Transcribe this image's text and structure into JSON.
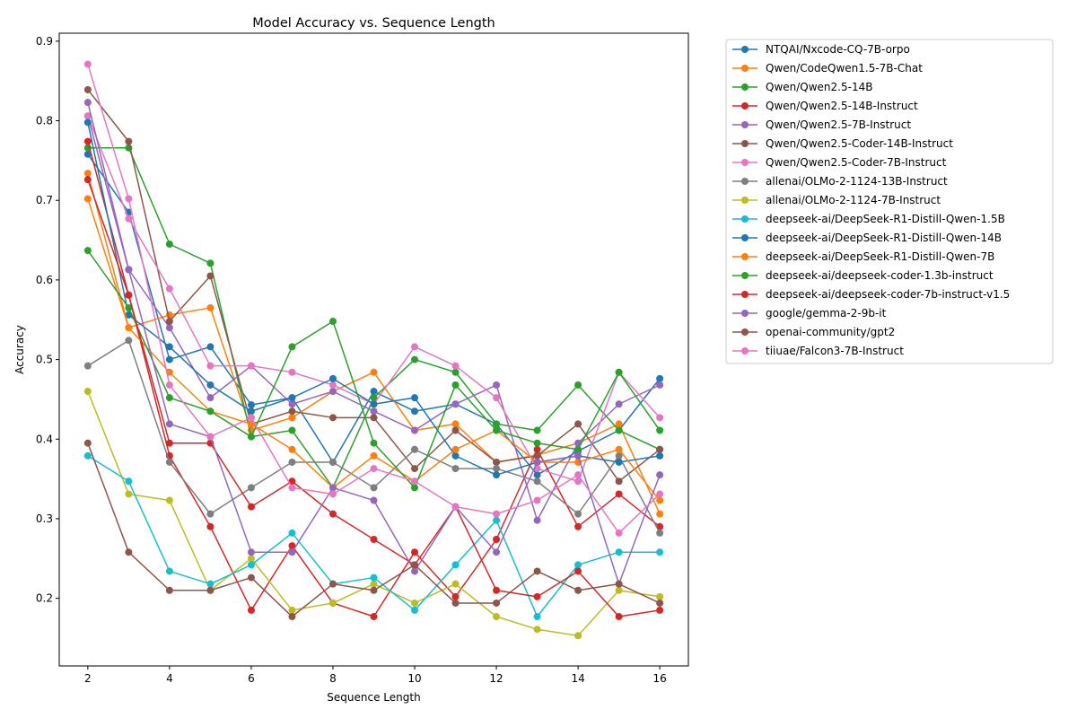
{
  "chart_data": {
    "type": "line",
    "title": "Model Accuracy vs. Sequence Length",
    "xlabel": "Sequence Length",
    "ylabel": "Accuracy",
    "x": [
      2,
      3,
      4,
      5,
      6,
      7,
      8,
      9,
      10,
      11,
      12,
      13,
      14,
      15,
      16
    ],
    "xticks": [
      2,
      4,
      6,
      8,
      10,
      12,
      14,
      16
    ],
    "yticks": [
      0.2,
      0.3,
      0.4,
      0.5,
      0.6,
      0.7,
      0.8,
      0.9
    ],
    "xlim": [
      1.3,
      16.7
    ],
    "ylim": [
      0.115,
      0.91
    ],
    "grid": false,
    "legend_placement": "outside upper right",
    "series": [
      {
        "name": "NTQAI/Nxcode-CQ-7B-orpo",
        "color": "#1f77b4",
        "values": [
          0.758,
          0.685,
          0.5,
          0.516,
          0.443,
          0.452,
          0.371,
          0.46,
          0.435,
          0.444,
          0.419,
          0.355,
          0.385,
          0.411,
          0.476
        ]
      },
      {
        "name": "Qwen/CodeQwen1.5-7B-Chat",
        "color": "#ff7f0e",
        "values": [
          0.702,
          0.54,
          0.556,
          0.565,
          0.411,
          0.427,
          0.46,
          0.484,
          0.411,
          0.419,
          0.371,
          0.38,
          0.395,
          0.419,
          0.306
        ]
      },
      {
        "name": "Qwen/Qwen2.5-14B",
        "color": "#2ca02c",
        "values": [
          0.766,
          0.766,
          0.645,
          0.621,
          0.403,
          0.411,
          0.339,
          0.452,
          0.5,
          0.484,
          0.419,
          0.411,
          0.468,
          0.411,
          0.387
        ]
      },
      {
        "name": "Qwen/Qwen2.5-14B-Instruct",
        "color": "#d62728",
        "values": [
          0.774,
          0.581,
          0.379,
          0.29,
          0.185,
          0.266,
          0.194,
          0.177,
          0.258,
          0.202,
          0.274,
          0.387,
          0.29,
          0.331,
          0.29
        ]
      },
      {
        "name": "Qwen/Qwen2.5-7B-Instruct",
        "color": "#9467bd",
        "values": [
          0.806,
          0.613,
          0.54,
          0.452,
          0.492,
          0.444,
          0.46,
          0.435,
          0.411,
          0.444,
          0.468,
          0.298,
          0.395,
          0.444,
          0.468
        ]
      },
      {
        "name": "Qwen/Qwen2.5-Coder-14B-Instruct",
        "color": "#8c564b",
        "values": [
          0.839,
          0.774,
          0.548,
          0.605,
          0.419,
          0.435,
          0.427,
          0.427,
          0.363,
          0.411,
          0.371,
          0.379,
          0.419,
          0.347,
          0.387
        ]
      },
      {
        "name": "Qwen/Qwen2.5-Coder-7B-Instruct",
        "color": "#e377c2",
        "values": [
          0.806,
          0.677,
          0.589,
          0.492,
          0.492,
          0.484,
          0.468,
          0.444,
          0.516,
          0.492,
          0.452,
          0.363,
          0.347,
          0.484,
          0.427
        ]
      },
      {
        "name": "allenai/OLMo-2-1124-13B-Instruct",
        "color": "#7f7f7f",
        "values": [
          0.492,
          0.524,
          0.371,
          0.306,
          0.339,
          0.371,
          0.371,
          0.339,
          0.387,
          0.363,
          0.363,
          0.347,
          0.306,
          0.379,
          0.282
        ]
      },
      {
        "name": "allenai/OLMo-2-1124-7B-Instruct",
        "color": "#bcbd22",
        "values": [
          0.46,
          0.331,
          0.323,
          0.21,
          0.25,
          0.185,
          0.194,
          0.218,
          0.194,
          0.218,
          0.177,
          0.161,
          0.153,
          0.21,
          0.202
        ]
      },
      {
        "name": "deepseek-ai/DeepSeek-R1-Distill-Qwen-1.5B",
        "color": "#17becf",
        "values": [
          0.379,
          0.347,
          0.234,
          0.218,
          0.242,
          0.282,
          0.218,
          0.226,
          0.185,
          0.242,
          0.298,
          0.177,
          0.242,
          0.258,
          0.258
        ]
      },
      {
        "name": "deepseek-ai/DeepSeek-R1-Distill-Qwen-14B",
        "color": "#1f77b4",
        "values": [
          0.798,
          0.556,
          0.516,
          0.468,
          0.435,
          0.452,
          0.476,
          0.444,
          0.452,
          0.379,
          0.355,
          0.371,
          0.379,
          0.371,
          0.379
        ]
      },
      {
        "name": "deepseek-ai/DeepSeek-R1-Distill-Qwen-7B",
        "color": "#ff7f0e",
        "values": [
          0.734,
          0.54,
          0.484,
          0.435,
          0.419,
          0.387,
          0.339,
          0.379,
          0.347,
          0.387,
          0.411,
          0.371,
          0.371,
          0.387,
          0.323
        ]
      },
      {
        "name": "deepseek-ai/deepseek-coder-1.3b-instruct",
        "color": "#2ca02c",
        "values": [
          0.637,
          0.565,
          0.452,
          0.435,
          0.403,
          0.516,
          0.548,
          0.395,
          0.339,
          0.468,
          0.411,
          0.395,
          0.387,
          0.484,
          0.411
        ]
      },
      {
        "name": "deepseek-ai/deepseek-coder-7b-instruct-v1.5",
        "color": "#d62728",
        "values": [
          0.726,
          0.581,
          0.395,
          0.395,
          0.315,
          0.347,
          0.306,
          0.274,
          0.242,
          0.315,
          0.21,
          0.202,
          0.234,
          0.177,
          0.185
        ]
      },
      {
        "name": "google/gemma-2-9b-it",
        "color": "#9467bd",
        "values": [
          0.823,
          0.613,
          0.419,
          0.403,
          0.258,
          0.258,
          0.339,
          0.323,
          0.234,
          0.315,
          0.258,
          0.371,
          0.379,
          0.218,
          0.355
        ]
      },
      {
        "name": "openai-community/gpt2",
        "color": "#8c564b",
        "values": [
          0.395,
          0.258,
          0.21,
          0.21,
          0.226,
          0.177,
          0.218,
          0.21,
          0.242,
          0.194,
          0.194,
          0.234,
          0.21,
          0.218,
          0.194
        ]
      },
      {
        "name": "tiiuae/Falcon3-7B-Instruct",
        "color": "#e377c2",
        "values": [
          0.871,
          0.702,
          0.468,
          0.403,
          0.427,
          0.339,
          0.331,
          0.363,
          0.347,
          0.315,
          0.306,
          0.323,
          0.355,
          0.282,
          0.331
        ]
      }
    ]
  }
}
